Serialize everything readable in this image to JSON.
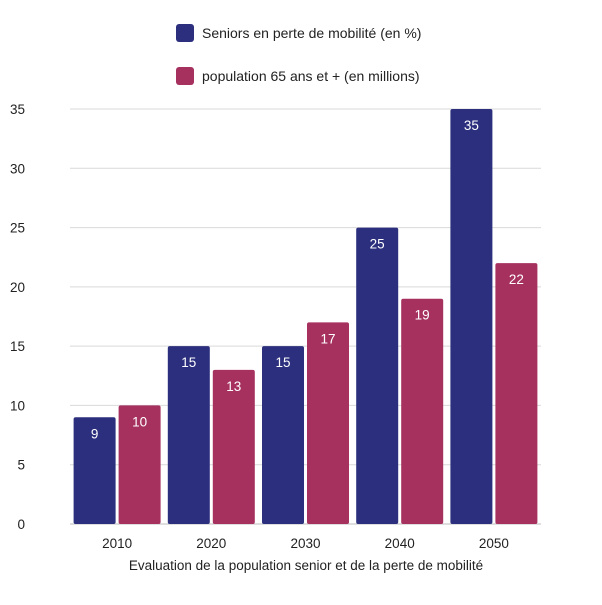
{
  "chart_data": {
    "type": "bar",
    "categories": [
      "2010",
      "2020",
      "2030",
      "2040",
      "2050"
    ],
    "series": [
      {
        "name": "Seniors en perte de mobilité (en %)",
        "values": [
          9,
          15,
          15,
          25,
          35
        ],
        "color": "#2b2f7d"
      },
      {
        "name": "population 65 ans et + (en millions)",
        "values": [
          10,
          13,
          17,
          19,
          22
        ],
        "color": "#a6315f"
      }
    ],
    "title": "",
    "xlabel": "Evaluation de la population senior et de la perte de mobilité",
    "ylabel": "",
    "ylim": [
      0,
      35
    ],
    "yticks": [
      0,
      5,
      10,
      15,
      20,
      25,
      30,
      35
    ],
    "grid": true,
    "legend_position": "top",
    "data_labels": true,
    "label_color": "#ffffff",
    "axis_text_color": "#222222",
    "grid_color": "#d9d9d9"
  }
}
